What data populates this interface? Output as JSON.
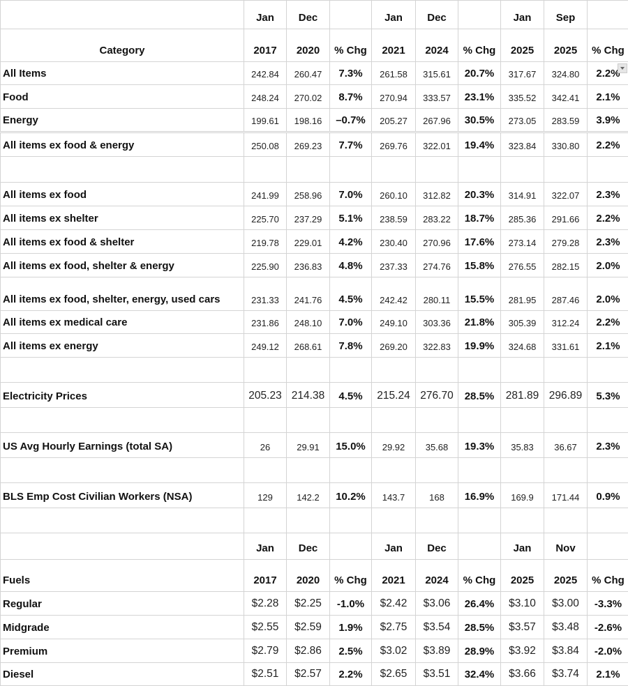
{
  "cpi_header": {
    "months": [
      "Jan",
      "Dec",
      "",
      "Jan",
      "Dec",
      "",
      "Jan",
      "Sep",
      ""
    ],
    "category_label": "Category",
    "years": [
      "2017",
      "2020",
      "% Chg",
      "2021",
      "2024",
      "% Chg",
      "2025",
      "2025",
      "% Chg"
    ]
  },
  "cpi_rows": [
    {
      "label": "All Items",
      "values": [
        "242.84",
        "260.47",
        "7.3%",
        "261.58",
        "315.61",
        "20.7%",
        "317.67",
        "324.80",
        "2.2%"
      ]
    },
    {
      "label": "Food",
      "values": [
        "248.24",
        "270.02",
        "8.7%",
        "270.94",
        "333.57",
        "23.1%",
        "335.52",
        "342.41",
        "2.1%"
      ]
    },
    {
      "label": "Energy",
      "values": [
        "199.61",
        "198.16",
        "–0.7%",
        "205.27",
        "267.96",
        "30.5%",
        "273.05",
        "283.59",
        "3.9%"
      ]
    },
    {
      "label": "All items ex food & energy",
      "values": [
        "250.08",
        "269.23",
        "7.7%",
        "269.76",
        "322.01",
        "19.4%",
        "323.84",
        "330.80",
        "2.2%"
      ]
    },
    {
      "label": "All items ex food",
      "values": [
        "241.99",
        "258.96",
        "7.0%",
        "260.10",
        "312.82",
        "20.3%",
        "314.91",
        "322.07",
        "2.3%"
      ]
    },
    {
      "label": "All items ex shelter",
      "values": [
        "225.70",
        "237.29",
        "5.1%",
        "238.59",
        "283.22",
        "18.7%",
        "285.36",
        "291.66",
        "2.2%"
      ]
    },
    {
      "label": "All items ex food & shelter",
      "values": [
        "219.78",
        "229.01",
        "4.2%",
        "230.40",
        "270.96",
        "17.6%",
        "273.14",
        "279.28",
        "2.3%"
      ]
    },
    {
      "label": "All items ex food, shelter & energy",
      "values": [
        "225.90",
        "236.83",
        "4.8%",
        "237.33",
        "274.76",
        "15.8%",
        "276.55",
        "282.15",
        "2.0%"
      ]
    },
    {
      "label": "All items ex food, shelter, energy, used cars",
      "values": [
        "231.33",
        "241.76",
        "4.5%",
        "242.42",
        "280.11",
        "15.5%",
        "281.95",
        "287.46",
        "2.0%"
      ]
    },
    {
      "label": "All items ex medical care",
      "values": [
        "231.86",
        "248.10",
        "7.0%",
        "249.10",
        "303.36",
        "21.8%",
        "305.39",
        "312.24",
        "2.2%"
      ]
    },
    {
      "label": "All items ex energy",
      "values": [
        "249.12",
        "268.61",
        "7.8%",
        "269.20",
        "322.83",
        "19.9%",
        "324.68",
        "331.61",
        "2.1%"
      ]
    },
    {
      "label": "Electricity Prices",
      "values": [
        "205.23",
        "214.38",
        "4.5%",
        "215.24",
        "276.70",
        "28.5%",
        "281.89",
        "296.89",
        "5.3%"
      ]
    },
    {
      "label": "US Avg Hourly Earnings (total SA)",
      "values": [
        "26",
        "29.91",
        "15.0%",
        "29.92",
        "35.68",
        "19.3%",
        "35.83",
        "36.67",
        "2.3%"
      ]
    },
    {
      "label": "BLS Emp Cost Civilian Workers (NSA)",
      "values": [
        "129",
        "142.2",
        "10.2%",
        "143.7",
        "168",
        "16.9%",
        "169.9",
        "171.44",
        "0.9%"
      ]
    }
  ],
  "fuel_header": {
    "months": [
      "Jan",
      "Dec",
      "",
      "Jan",
      "Dec",
      "",
      "Jan",
      "Nov",
      ""
    ],
    "category_label": "Fuels",
    "years": [
      "2017",
      "2020",
      "% Chg",
      "2021",
      "2024",
      "% Chg",
      "2025",
      "2025",
      "% Chg"
    ]
  },
  "fuel_rows": [
    {
      "label": "Regular",
      "values": [
        "$2.28",
        "$2.25",
        "-1.0%",
        "$2.42",
        "$3.06",
        "26.4%",
        "$3.10",
        "$3.00",
        "-3.3%"
      ]
    },
    {
      "label": "Midgrade",
      "values": [
        "$2.55",
        "$2.59",
        "1.9%",
        "$2.75",
        "$3.54",
        "28.5%",
        "$3.57",
        "$3.48",
        "-2.6%"
      ]
    },
    {
      "label": "Premium",
      "values": [
        "$2.79",
        "$2.86",
        "2.5%",
        "$3.02",
        "$3.89",
        "28.9%",
        "$3.92",
        "$3.84",
        "-2.0%"
      ]
    },
    {
      "label": "Diesel",
      "values": [
        "$2.51",
        "$2.57",
        "2.2%",
        "$2.65",
        "$3.51",
        "32.4%",
        "$3.66",
        "$3.74",
        "2.1%"
      ]
    }
  ],
  "filter_icon": "dropdown-arrow-icon"
}
